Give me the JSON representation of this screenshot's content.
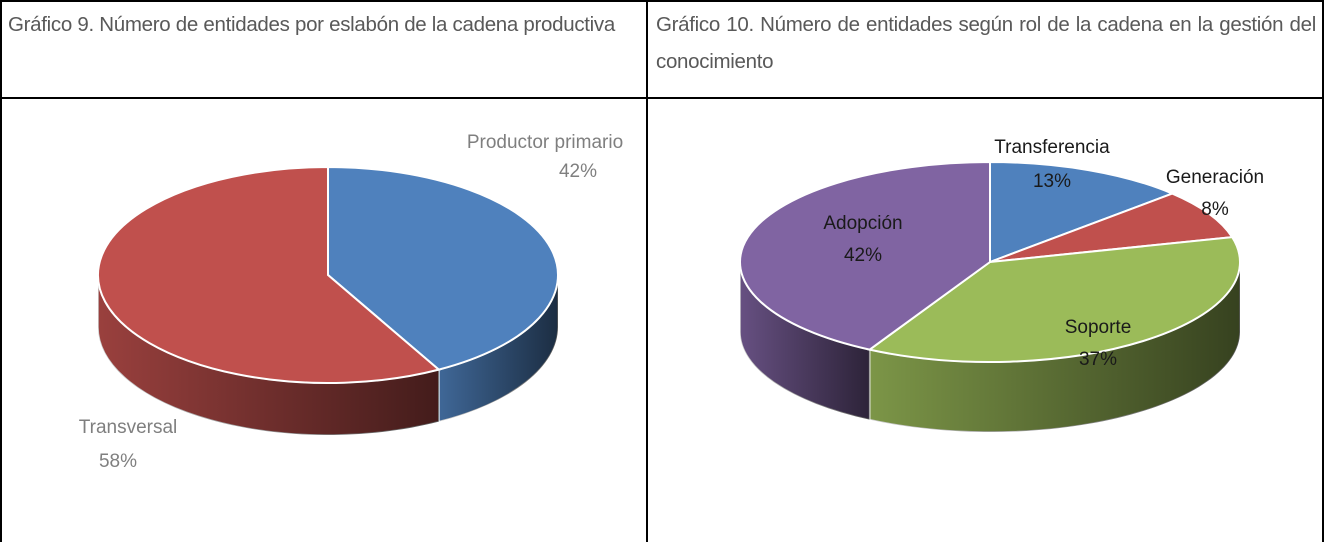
{
  "chart_data": [
    {
      "type": "pie",
      "title": "Gráfico 9. Número de entidades por eslabón de la cadena productiva",
      "categories": [
        "Productor primario",
        "Transversal"
      ],
      "values": [
        42,
        58
      ],
      "value_labels": [
        "42%",
        "58%"
      ],
      "colors": [
        "#4f81bd",
        "#c0504d"
      ]
    },
    {
      "type": "pie",
      "title": "Gráfico 10. Número de entidades según rol de la cadena en la gestión del conocimiento",
      "categories": [
        "Transferencia",
        "Generación",
        "Soporte",
        "Adopción"
      ],
      "values": [
        13,
        8,
        37,
        42
      ],
      "value_labels": [
        "13%",
        "8%",
        "37%",
        "42%"
      ],
      "colors": [
        "#4f81bd",
        "#c0504d",
        "#9bbb59",
        "#8064a2"
      ]
    }
  ]
}
